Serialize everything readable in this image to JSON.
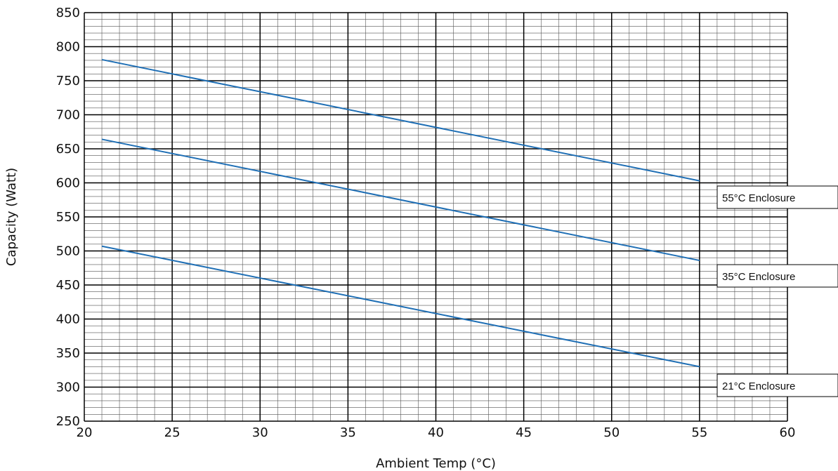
{
  "chart_data": {
    "type": "line",
    "title": "",
    "xlabel": "Ambient Temp (°C)",
    "ylabel": "Capacity (Watt)",
    "xlim": [
      20,
      60
    ],
    "ylim": [
      250,
      850
    ],
    "x_ticks": [
      20,
      25,
      30,
      35,
      40,
      45,
      50,
      55,
      60
    ],
    "y_ticks": [
      250,
      300,
      350,
      400,
      450,
      500,
      550,
      600,
      650,
      700,
      750,
      800,
      850
    ],
    "grid": true,
    "line_color": "#1f6fb5",
    "series": [
      {
        "name": "55°C Enclosure",
        "x": [
          21,
          55
        ],
        "y": [
          781,
          603
        ]
      },
      {
        "name": "35°C Enclosure",
        "x": [
          21,
          55
        ],
        "y": [
          664,
          486
        ]
      },
      {
        "name": "21°C Enclosure",
        "x": [
          21,
          55
        ],
        "y": [
          507,
          330
        ]
      }
    ],
    "legend_placement": "right"
  }
}
